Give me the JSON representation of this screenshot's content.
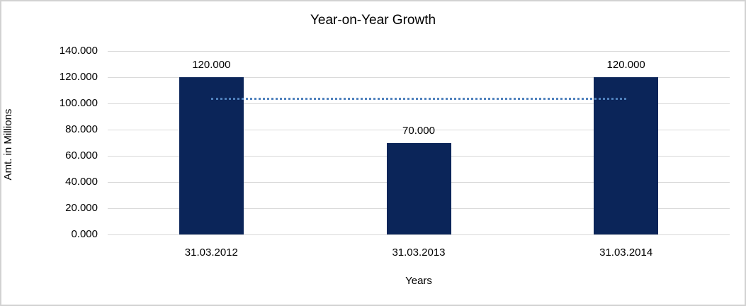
{
  "chart_data": {
    "type": "bar",
    "title": "Year-on-Year Growth",
    "xlabel": "Years",
    "ylabel": "Amt. in Millions",
    "categories": [
      "31.03.2012",
      "31.03.2013",
      "31.03.2014"
    ],
    "values": [
      120,
      70,
      120
    ],
    "data_labels": [
      "120.000",
      "70.000",
      "120.000"
    ],
    "ylim": [
      0,
      140
    ],
    "y_tick_step": 20,
    "y_tick_labels": [
      "140.000",
      "120.000",
      "100.000",
      "80.000",
      "60.000",
      "40.000",
      "20.000",
      "0.000"
    ],
    "grid": true,
    "legend": "none",
    "trendline": {
      "type": "linear",
      "value": 103.333,
      "style": "dotted"
    },
    "colors": {
      "bar": "#0b2559",
      "trendline": "#4f81bd",
      "gridline": "#d9d9d9",
      "frame_border": "#d2d2d2",
      "text": "#000000",
      "background": "#ffffff"
    }
  }
}
